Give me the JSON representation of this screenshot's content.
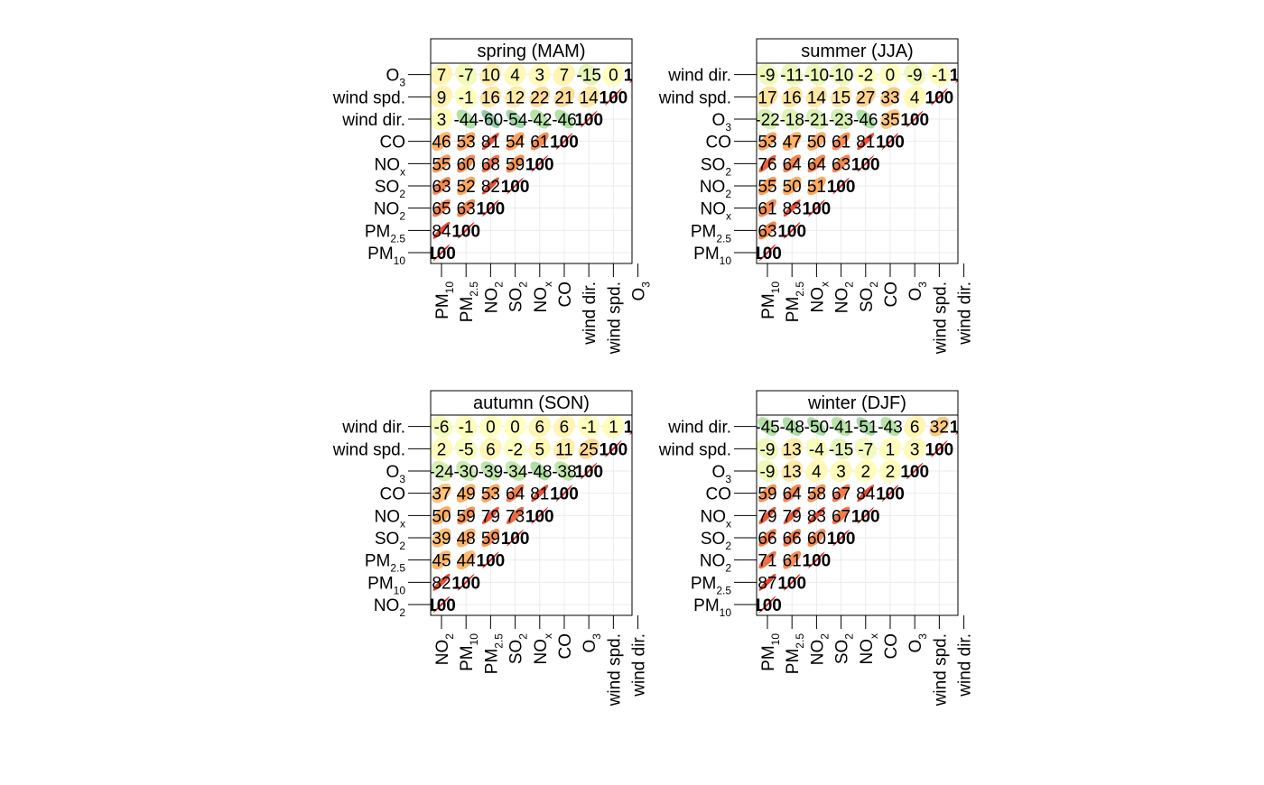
{
  "chart_data": [
    {
      "type": "heatmap",
      "title": "spring (MAM)",
      "variables": [
        {
          "label": "PM",
          "sub": "10"
        },
        {
          "label": "PM",
          "sub": "2.5"
        },
        {
          "label": "NO",
          "sub": "2"
        },
        {
          "label": "SO",
          "sub": "2"
        },
        {
          "label": "NO",
          "sub": "x"
        },
        {
          "label": "CO",
          "sub": ""
        },
        {
          "label": "wind dir.",
          "sub": ""
        },
        {
          "label": "wind spd.",
          "sub": ""
        },
        {
          "label": "O",
          "sub": "3"
        }
      ],
      "lower_triangle_values": [
        [
          100
        ],
        [
          84,
          100
        ],
        [
          65,
          63,
          100
        ],
        [
          63,
          52,
          82,
          100
        ],
        [
          55,
          60,
          68,
          59,
          100
        ],
        [
          46,
          53,
          81,
          54,
          61,
          100
        ],
        [
          3,
          -44,
          -60,
          -54,
          -42,
          -46,
          100
        ],
        [
          9,
          -1,
          16,
          12,
          22,
          21,
          14,
          100
        ],
        [
          7,
          -7,
          10,
          4,
          3,
          7,
          -15,
          0,
          100
        ]
      ]
    },
    {
      "type": "heatmap",
      "title": "summer (JJA)",
      "variables": [
        {
          "label": "PM",
          "sub": "10"
        },
        {
          "label": "PM",
          "sub": "2.5"
        },
        {
          "label": "NO",
          "sub": "x"
        },
        {
          "label": "NO",
          "sub": "2"
        },
        {
          "label": "SO",
          "sub": "2"
        },
        {
          "label": "CO",
          "sub": ""
        },
        {
          "label": "O",
          "sub": "3"
        },
        {
          "label": "wind spd.",
          "sub": ""
        },
        {
          "label": "wind dir.",
          "sub": ""
        }
      ],
      "lower_triangle_values": [
        [
          100
        ],
        [
          63,
          100
        ],
        [
          61,
          83,
          100
        ],
        [
          55,
          50,
          51,
          100
        ],
        [
          76,
          64,
          64,
          63,
          100
        ],
        [
          53,
          47,
          50,
          61,
          81,
          100
        ],
        [
          -22,
          -18,
          -21,
          -23,
          -46,
          35,
          100
        ],
        [
          17,
          16,
          14,
          15,
          27,
          33,
          4,
          100
        ],
        [
          -9,
          -11,
          -10,
          -10,
          -2,
          0,
          -9,
          -1,
          100
        ]
      ]
    },
    {
      "type": "heatmap",
      "title": "autumn (SON)",
      "variables": [
        {
          "label": "NO",
          "sub": "2"
        },
        {
          "label": "PM",
          "sub": "10"
        },
        {
          "label": "PM",
          "sub": "2.5"
        },
        {
          "label": "SO",
          "sub": "2"
        },
        {
          "label": "NO",
          "sub": "x"
        },
        {
          "label": "CO",
          "sub": ""
        },
        {
          "label": "O",
          "sub": "3"
        },
        {
          "label": "wind spd.",
          "sub": ""
        },
        {
          "label": "wind dir.",
          "sub": ""
        }
      ],
      "lower_triangle_values": [
        [
          100
        ],
        [
          82,
          100
        ],
        [
          45,
          44,
          100
        ],
        [
          39,
          48,
          59,
          100
        ],
        [
          50,
          59,
          79,
          73,
          100
        ],
        [
          37,
          49,
          53,
          64,
          81,
          100
        ],
        [
          -24,
          -30,
          -39,
          -34,
          -48,
          -38,
          100
        ],
        [
          2,
          -5,
          6,
          -2,
          5,
          11,
          25,
          100
        ],
        [
          -6,
          -1,
          0,
          0,
          6,
          6,
          -1,
          1,
          100
        ]
      ]
    },
    {
      "type": "heatmap",
      "title": "winter (DJF)",
      "variables": [
        {
          "label": "PM",
          "sub": "10"
        },
        {
          "label": "PM",
          "sub": "2.5"
        },
        {
          "label": "NO",
          "sub": "2"
        },
        {
          "label": "SO",
          "sub": "2"
        },
        {
          "label": "NO",
          "sub": "x"
        },
        {
          "label": "CO",
          "sub": ""
        },
        {
          "label": "O",
          "sub": "3"
        },
        {
          "label": "wind spd.",
          "sub": ""
        },
        {
          "label": "wind dir.",
          "sub": ""
        }
      ],
      "lower_triangle_values": [
        [
          100
        ],
        [
          87,
          100
        ],
        [
          71,
          61,
          100
        ],
        [
          66,
          66,
          60,
          100
        ],
        [
          79,
          79,
          83,
          67,
          100
        ],
        [
          59,
          64,
          58,
          67,
          84,
          100
        ],
        [
          -9,
          13,
          4,
          3,
          2,
          2,
          100
        ],
        [
          -9,
          13,
          -4,
          -15,
          -7,
          1,
          3,
          100
        ],
        [
          -45,
          -48,
          -50,
          -41,
          -51,
          -43,
          6,
          32,
          100
        ]
      ]
    }
  ],
  "colors": {
    "diverging_scale": [
      "#2b83ba",
      "#abdda4",
      "#ffffbf",
      "#fdae61",
      "#d7191c"
    ]
  }
}
